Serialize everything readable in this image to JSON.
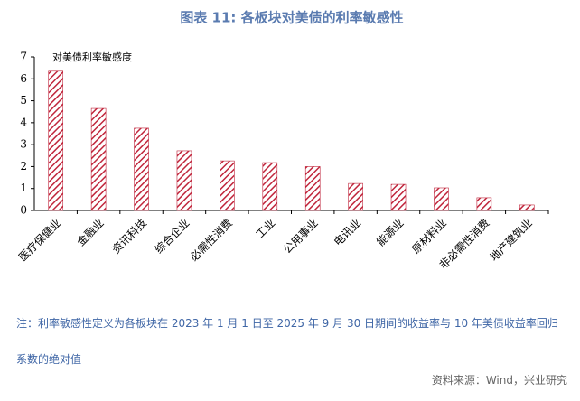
{
  "chart_data": {
    "type": "bar",
    "title": "图表 11:    各板块对美债的利率敏感性",
    "categories": [
      "医疗保健业",
      "金融业",
      "资讯科技",
      "综合企业",
      "必需性消费",
      "工业",
      "公用事业",
      "电讯业",
      "能源业",
      "原材料业",
      "非必需性消费",
      "地产建筑业"
    ],
    "series": [
      {
        "name": "对美债利率敏感度",
        "color": "#c0263c",
        "values": [
          6.35,
          4.65,
          3.75,
          2.72,
          2.26,
          2.18,
          2.0,
          1.23,
          1.19,
          1.03,
          0.58,
          0.25
        ]
      }
    ],
    "ylim": [
      0,
      7
    ],
    "yticks": [
      0,
      1,
      2,
      3,
      4,
      5,
      6,
      7
    ],
    "grid": false,
    "legend": "top-left",
    "note": "注：利率敏感性定义为各板块在 2023 年 1 月 1 日至 2025 年 9 月 30 日期间的收益率与 10 年美债收益率回归系数的绝对值",
    "source": "资料来源：Wind，兴业研究"
  }
}
